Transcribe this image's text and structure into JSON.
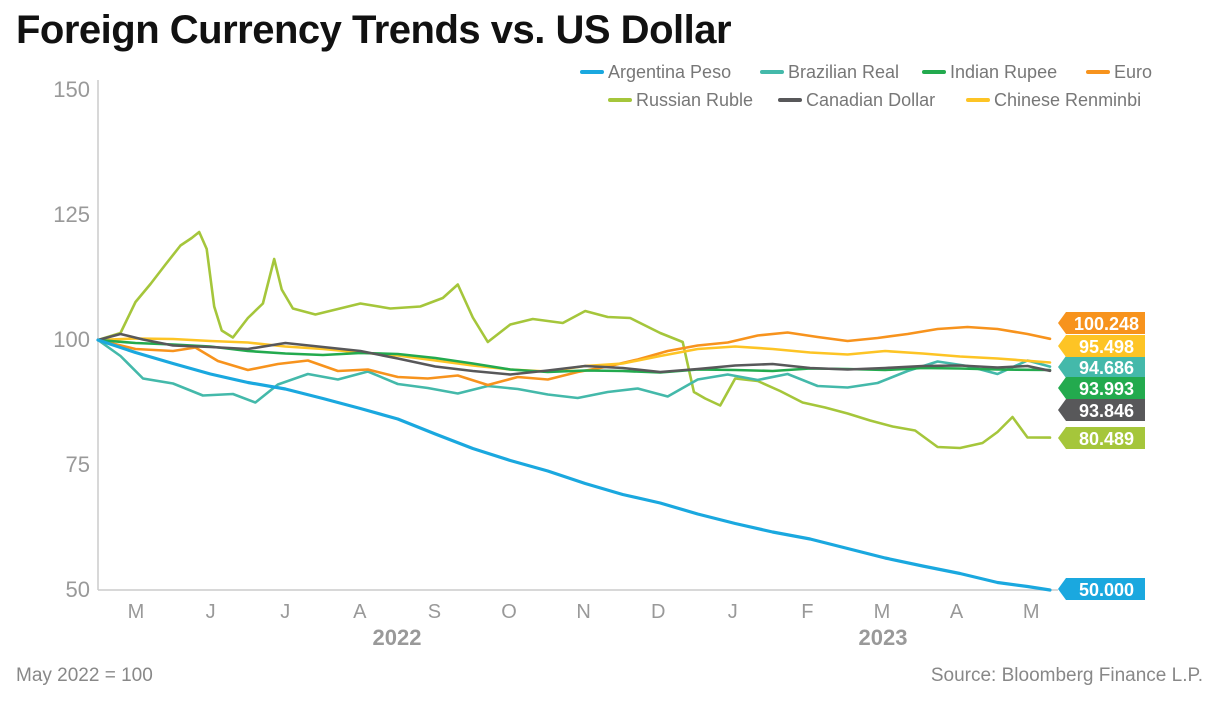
{
  "title": "Foreign Currency Trends vs. US Dollar",
  "footnote": "May 2022 = 100",
  "source": "Source: Bloomberg Finance L.P.",
  "chart_data": {
    "type": "line",
    "xlabel": "",
    "ylabel": "",
    "ylim": [
      50,
      150
    ],
    "yticks": [
      50,
      75,
      100,
      125,
      150
    ],
    "xlim": [
      0,
      12.7
    ],
    "month_ticks": [
      "M",
      "J",
      "J",
      "A",
      "S",
      "O",
      "N",
      "D",
      "J",
      "F",
      "M",
      "A",
      "M"
    ],
    "year_labels": [
      {
        "label": "2022",
        "x": 4.0
      },
      {
        "label": "2023",
        "x": 10.5
      }
    ],
    "grid": false,
    "legend_position": "top-right",
    "series": [
      {
        "name": "Argentina Peso",
        "color": "#1aa8df",
        "end_label": "50.000",
        "points": [
          [
            0,
            100
          ],
          [
            0.5,
            97.5
          ],
          [
            1,
            95.3
          ],
          [
            1.5,
            93.2
          ],
          [
            2,
            91.5
          ],
          [
            2.5,
            90.2
          ],
          [
            3,
            88.3
          ],
          [
            3.5,
            86.3
          ],
          [
            4,
            84.2
          ],
          [
            4.5,
            81.2
          ],
          [
            5,
            78.3
          ],
          [
            5.5,
            75.9
          ],
          [
            6,
            73.8
          ],
          [
            6.5,
            71.3
          ],
          [
            7,
            69.1
          ],
          [
            7.5,
            67.4
          ],
          [
            8,
            65.2
          ],
          [
            8.5,
            63.3
          ],
          [
            9,
            61.6
          ],
          [
            9.5,
            60.2
          ],
          [
            10,
            58.3
          ],
          [
            10.5,
            56.4
          ],
          [
            11,
            54.8
          ],
          [
            11.5,
            53.3
          ],
          [
            12,
            51.5
          ],
          [
            12.4,
            50.7
          ],
          [
            12.7,
            50.0
          ]
        ]
      },
      {
        "name": "Brazilian Real",
        "color": "#44b9aa",
        "end_label": "94.686",
        "points": [
          [
            0,
            100
          ],
          [
            0.3,
            96.8
          ],
          [
            0.6,
            92.3
          ],
          [
            1,
            91.3
          ],
          [
            1.4,
            88.9
          ],
          [
            1.8,
            89.2
          ],
          [
            2.1,
            87.5
          ],
          [
            2.4,
            91.1
          ],
          [
            2.8,
            93.2
          ],
          [
            3.2,
            92.1
          ],
          [
            3.6,
            93.7
          ],
          [
            4,
            91.2
          ],
          [
            4.4,
            90.4
          ],
          [
            4.8,
            89.3
          ],
          [
            5.2,
            90.8
          ],
          [
            5.6,
            90.2
          ],
          [
            6,
            89.1
          ],
          [
            6.4,
            88.4
          ],
          [
            6.8,
            89.6
          ],
          [
            7.2,
            90.3
          ],
          [
            7.6,
            88.7
          ],
          [
            8,
            92.1
          ],
          [
            8.4,
            93.1
          ],
          [
            8.8,
            92.0
          ],
          [
            9.2,
            93.2
          ],
          [
            9.6,
            90.8
          ],
          [
            10,
            90.5
          ],
          [
            10.4,
            91.4
          ],
          [
            10.8,
            93.8
          ],
          [
            11.2,
            95.7
          ],
          [
            11.6,
            94.8
          ],
          [
            12,
            93.2
          ],
          [
            12.4,
            95.9
          ],
          [
            12.7,
            94.686
          ]
        ]
      },
      {
        "name": "Indian Rupee",
        "color": "#23aa4e",
        "end_label": "93.993",
        "points": [
          [
            0,
            100
          ],
          [
            0.5,
            99.4
          ],
          [
            1,
            99.1
          ],
          [
            1.5,
            98.7
          ],
          [
            2,
            97.8
          ],
          [
            2.5,
            97.3
          ],
          [
            3,
            97.0
          ],
          [
            3.5,
            97.4
          ],
          [
            4,
            97.2
          ],
          [
            4.5,
            96.4
          ],
          [
            5,
            95.3
          ],
          [
            5.5,
            94.1
          ],
          [
            6,
            93.6
          ],
          [
            6.5,
            93.9
          ],
          [
            7,
            93.8
          ],
          [
            7.5,
            93.5
          ],
          [
            8,
            94.1
          ],
          [
            8.5,
            94.0
          ],
          [
            9,
            93.8
          ],
          [
            9.5,
            94.3
          ],
          [
            10,
            94.2
          ],
          [
            10.5,
            94.0
          ],
          [
            11,
            94.4
          ],
          [
            11.5,
            94.3
          ],
          [
            12,
            94.1
          ],
          [
            12.7,
            93.993
          ]
        ]
      },
      {
        "name": "Euro",
        "color": "#f7931d",
        "end_label": "100.248",
        "points": [
          [
            0,
            100
          ],
          [
            0.5,
            98.2
          ],
          [
            1,
            97.8
          ],
          [
            1.3,
            98.5
          ],
          [
            1.6,
            95.8
          ],
          [
            2,
            94.0
          ],
          [
            2.4,
            95.2
          ],
          [
            2.8,
            95.9
          ],
          [
            3.2,
            93.8
          ],
          [
            3.6,
            94.1
          ],
          [
            4,
            92.6
          ],
          [
            4.4,
            92.3
          ],
          [
            4.8,
            92.9
          ],
          [
            5.2,
            91.0
          ],
          [
            5.6,
            92.6
          ],
          [
            6,
            92.1
          ],
          [
            6.4,
            93.6
          ],
          [
            6.8,
            94.7
          ],
          [
            7.2,
            96.1
          ],
          [
            7.6,
            97.8
          ],
          [
            8,
            98.9
          ],
          [
            8.4,
            99.5
          ],
          [
            8.8,
            100.9
          ],
          [
            9.2,
            101.5
          ],
          [
            9.6,
            100.6
          ],
          [
            10,
            99.8
          ],
          [
            10.4,
            100.4
          ],
          [
            10.8,
            101.2
          ],
          [
            11.2,
            102.2
          ],
          [
            11.6,
            102.6
          ],
          [
            12,
            102.2
          ],
          [
            12.4,
            101.2
          ],
          [
            12.7,
            100.248
          ]
        ]
      },
      {
        "name": "Russian Ruble",
        "color": "#a5c63b",
        "end_label": "80.489",
        "points": [
          [
            0,
            100
          ],
          [
            0.3,
            101.4
          ],
          [
            0.5,
            107.6
          ],
          [
            0.7,
            111.2
          ],
          [
            0.9,
            115.1
          ],
          [
            1.1,
            118.9
          ],
          [
            1.25,
            120.4
          ],
          [
            1.35,
            121.6
          ],
          [
            1.45,
            118.2
          ],
          [
            1.55,
            106.7
          ],
          [
            1.65,
            101.9
          ],
          [
            1.8,
            100.5
          ],
          [
            2.0,
            104.4
          ],
          [
            2.2,
            107.3
          ],
          [
            2.35,
            116.2
          ],
          [
            2.45,
            110.1
          ],
          [
            2.6,
            106.3
          ],
          [
            2.9,
            105.1
          ],
          [
            3.2,
            106.2
          ],
          [
            3.5,
            107.3
          ],
          [
            3.9,
            106.3
          ],
          [
            4.3,
            106.7
          ],
          [
            4.6,
            108.4
          ],
          [
            4.8,
            111.1
          ],
          [
            5.0,
            104.5
          ],
          [
            5.2,
            99.6
          ],
          [
            5.5,
            103.1
          ],
          [
            5.8,
            104.2
          ],
          [
            6.2,
            103.4
          ],
          [
            6.5,
            105.8
          ],
          [
            6.8,
            104.6
          ],
          [
            7.1,
            104.4
          ],
          [
            7.5,
            101.4
          ],
          [
            7.8,
            99.6
          ],
          [
            7.95,
            89.6
          ],
          [
            8.1,
            88.3
          ],
          [
            8.3,
            86.9
          ],
          [
            8.5,
            92.3
          ],
          [
            8.8,
            91.8
          ],
          [
            9.1,
            89.8
          ],
          [
            9.4,
            87.5
          ],
          [
            9.7,
            86.5
          ],
          [
            10.0,
            85.3
          ],
          [
            10.3,
            83.9
          ],
          [
            10.6,
            82.7
          ],
          [
            10.9,
            81.9
          ],
          [
            11.2,
            78.6
          ],
          [
            11.5,
            78.4
          ],
          [
            11.8,
            79.4
          ],
          [
            12.0,
            81.6
          ],
          [
            12.2,
            84.6
          ],
          [
            12.4,
            80.5
          ],
          [
            12.7,
            80.489
          ]
        ]
      },
      {
        "name": "Canadian Dollar",
        "color": "#58585a",
        "end_label": "93.846",
        "points": [
          [
            0,
            100
          ],
          [
            0.3,
            101.2
          ],
          [
            0.6,
            100.1
          ],
          [
            1,
            98.9
          ],
          [
            1.5,
            98.6
          ],
          [
            2,
            98.2
          ],
          [
            2.5,
            99.4
          ],
          [
            3,
            98.6
          ],
          [
            3.5,
            97.8
          ],
          [
            4,
            96.3
          ],
          [
            4.5,
            94.7
          ],
          [
            5,
            93.8
          ],
          [
            5.5,
            93.1
          ],
          [
            6,
            93.9
          ],
          [
            6.5,
            94.8
          ],
          [
            7,
            94.4
          ],
          [
            7.5,
            93.6
          ],
          [
            8,
            94.2
          ],
          [
            8.5,
            94.9
          ],
          [
            9,
            95.2
          ],
          [
            9.5,
            94.4
          ],
          [
            10,
            94.1
          ],
          [
            10.5,
            94.4
          ],
          [
            11,
            94.8
          ],
          [
            11.5,
            94.9
          ],
          [
            12,
            94.5
          ],
          [
            12.4,
            94.8
          ],
          [
            12.7,
            93.846
          ]
        ]
      },
      {
        "name": "Chinese Renminbi",
        "color": "#fdc425",
        "end_label": "95.498",
        "points": [
          [
            0,
            100
          ],
          [
            0.5,
            100.3
          ],
          [
            1,
            100.2
          ],
          [
            1.5,
            99.8
          ],
          [
            2,
            99.5
          ],
          [
            2.5,
            98.7
          ],
          [
            3,
            98.2
          ],
          [
            3.5,
            97.5
          ],
          [
            4,
            96.9
          ],
          [
            4.5,
            95.9
          ],
          [
            5,
            94.9
          ],
          [
            5.5,
            94.1
          ],
          [
            6,
            93.7
          ],
          [
            6.5,
            94.8
          ],
          [
            7,
            95.3
          ],
          [
            7.5,
            96.8
          ],
          [
            8,
            98.2
          ],
          [
            8.5,
            98.7
          ],
          [
            9,
            98.2
          ],
          [
            9.5,
            97.5
          ],
          [
            10,
            97.1
          ],
          [
            10.5,
            97.8
          ],
          [
            11,
            97.3
          ],
          [
            11.5,
            96.7
          ],
          [
            12,
            96.3
          ],
          [
            12.7,
            95.498
          ]
        ]
      }
    ]
  }
}
